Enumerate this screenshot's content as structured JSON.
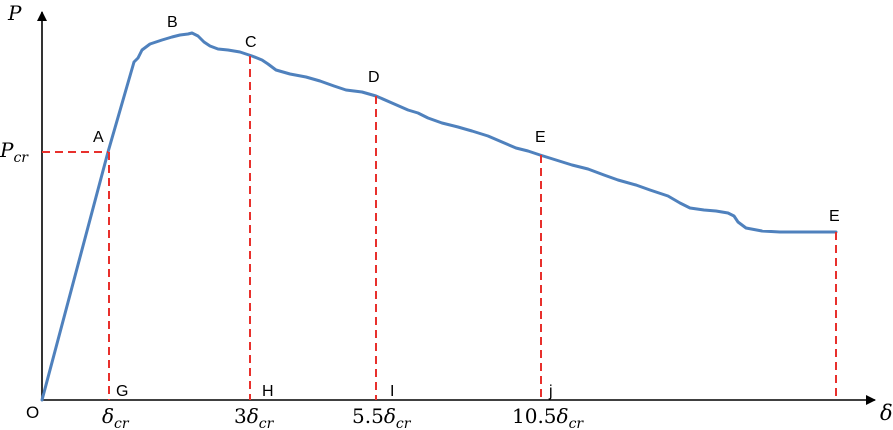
{
  "axes": {
    "y_label": "P",
    "x_label": "δ",
    "origin_label": "O"
  },
  "load_level": {
    "label_main": "P",
    "label_sub": "cr"
  },
  "points": {
    "A": "A",
    "B": "B",
    "C": "C",
    "D": "D",
    "E1": "E",
    "E2": "E"
  },
  "foot_labels": {
    "G": "G",
    "H": "H",
    "I": "I",
    "J": "j"
  },
  "ticks": [
    {
      "coef": "",
      "symbol": "δ",
      "sub": "cr"
    },
    {
      "coef": "3",
      "symbol": "δ",
      "sub": "cr"
    },
    {
      "coef": "5.5",
      "symbol": "δ",
      "sub": "cr"
    },
    {
      "coef": "10.5",
      "symbol": "δ",
      "sub": "cr"
    }
  ],
  "colors": {
    "curve": "#4f81bd",
    "dashed": "#e8302c",
    "axis": "#000000"
  }
}
